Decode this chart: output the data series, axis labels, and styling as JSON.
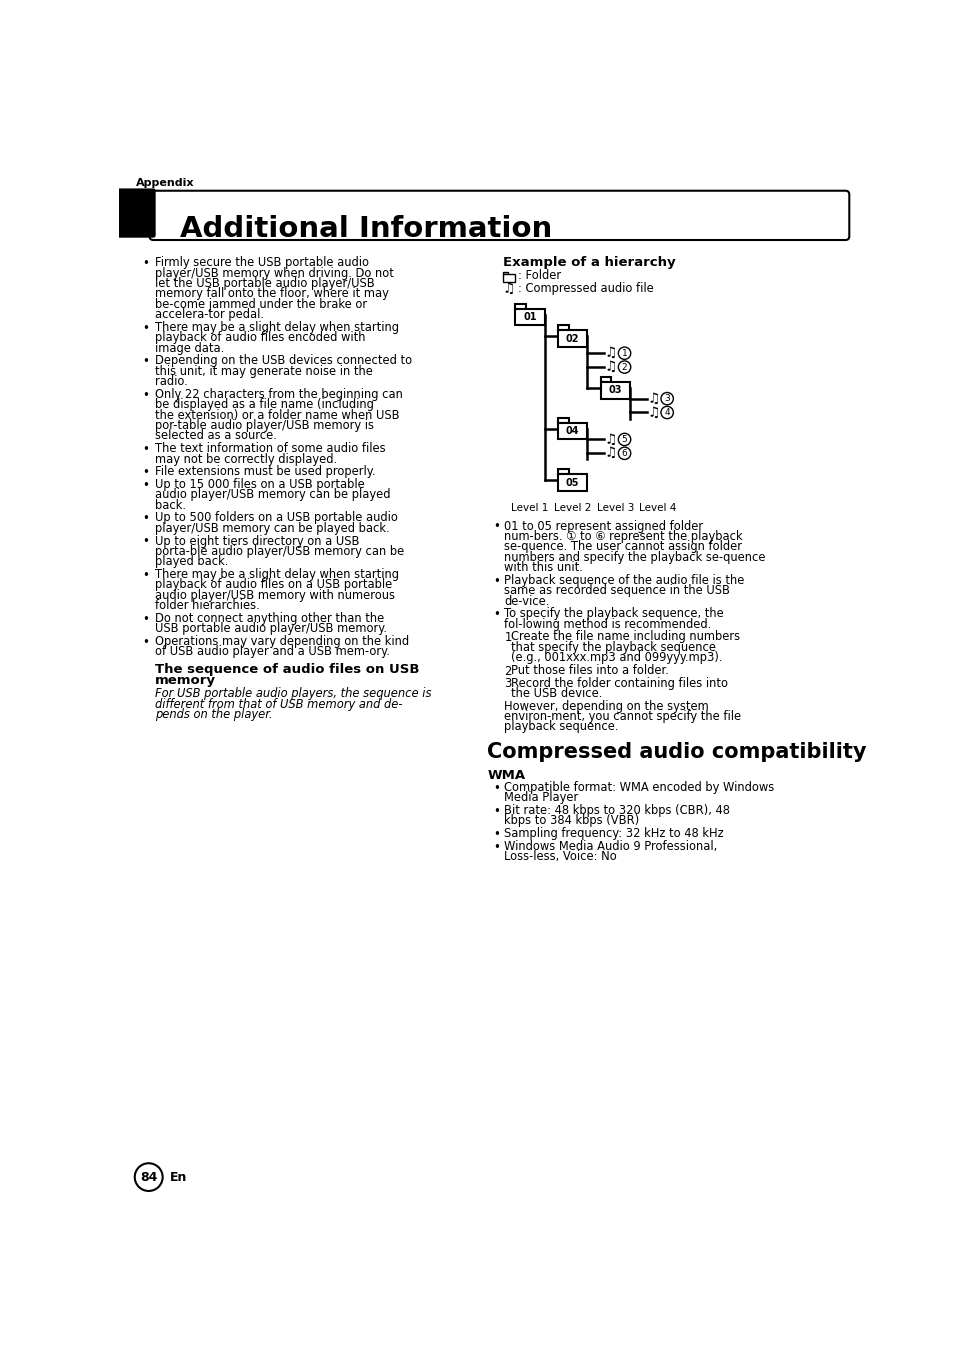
{
  "bg_color": "#ffffff",
  "page_title": "Additional Information",
  "section_label": "Appendix",
  "page_number": "84",
  "left_bullets": [
    "Firmly secure the USB portable audio player/USB memory when driving. Do not let the USB portable audio player/USB memory fall onto the floor, where it may be-come jammed under the brake or accelera-tor pedal.",
    "There may be a slight delay when starting playback of audio files encoded with image data.",
    "Depending on the USB devices connected to this unit, it may generate noise in the radio.",
    "Only 22 characters from the beginning can be displayed as a file name (including the extension) or a folder name when USB por-table audio player/USB memory is selected as a source.",
    "The text information of some audio files may not be correctly displayed.",
    "File extensions must be used properly.",
    "Up to 15 000 files on a USB portable audio player/USB memory can be played back.",
    "Up to 500 folders on a USB portable audio player/USB memory can be played back.",
    "Up to eight tiers directory on a USB porta-ble audio player/USB memory can be played back.",
    "There may be a slight delay when starting playback of audio files on a USB portable audio player/USB memory with numerous folder hierarchies.",
    "Do not connect anything other than the USB portable audio player/USB memory.",
    "Operations may vary depending on the kind of USB audio player and a USB mem-ory."
  ],
  "subheading_sequence": "The sequence of audio files on USB\nmemory",
  "sequence_italic": "For USB portable audio players, the sequence is\ndifferent from that of USB memory and de-\npends on the player.",
  "hierarchy_title": "Example of a hierarchy",
  "hierarchy_legend_folder": ": Folder",
  "hierarchy_legend_audio": ": Compressed audio file",
  "right_bullets": [
    "01 to 05 represent assigned folder num-bers. ① to ⑥ represent the playback se-quence. The user cannot assign folder numbers and specify the playback se-quence with this unit.",
    "Playback sequence of the audio file is the same as recorded sequence in the USB de-vice.",
    "To specify the playback sequence, the fol-lowing method is recommended."
  ],
  "numbered_steps": [
    "Create the file name including numbers that specify the playback sequence (e.g., 001xxx.mp3 and 099yyy.mp3).",
    "Put those files into a folder.",
    "Record the folder containing files into the USB device."
  ],
  "however_text": "However, depending on the system environ-ment, you cannot specify the file playback sequence.",
  "compressed_heading": "Compressed audio compatibility",
  "wma_heading": "WMA",
  "wma_bullets": [
    "Compatible format: WMA encoded by Windows Media Player",
    "Bit rate: 48 kbps to 320 kbps (CBR), 48 kbps to 384 kbps (VBR)",
    "Sampling frequency: 32 kHz to 48 kHz",
    "Windows Media Audio 9 Professional, Loss-less, Voice: No"
  ]
}
